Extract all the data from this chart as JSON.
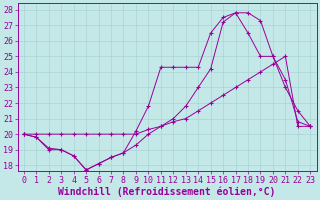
{
  "background_color": "#c4e8e8",
  "grid_color": "#a8d4d4",
  "line_color": "#990099",
  "xlabel": "Windchill (Refroidissement éolien,°C)",
  "xlabel_fontsize": 7.0,
  "tick_fontsize": 6.0,
  "ytick_labels": [
    18,
    19,
    20,
    21,
    22,
    23,
    24,
    25,
    26,
    27,
    28
  ],
  "xtick_labels": [
    0,
    1,
    2,
    3,
    4,
    5,
    6,
    7,
    8,
    9,
    10,
    11,
    12,
    13,
    14,
    15,
    16,
    17,
    18,
    19,
    20,
    21,
    22,
    23
  ],
  "ylim": [
    17.6,
    28.4
  ],
  "xlim": [
    -0.5,
    23.5
  ],
  "line1_x": [
    0,
    1,
    2,
    3,
    4,
    5,
    6,
    7,
    8,
    9,
    10,
    11,
    12,
    13,
    14,
    15,
    16,
    17,
    18,
    19,
    20,
    21,
    22,
    23
  ],
  "line1_y": [
    20.0,
    19.8,
    19.0,
    19.0,
    18.6,
    17.7,
    18.1,
    18.5,
    18.8,
    19.3,
    20.0,
    20.5,
    21.0,
    21.8,
    23.0,
    24.2,
    27.2,
    27.8,
    27.8,
    27.3,
    25.0,
    23.0,
    21.5,
    20.5
  ],
  "line2_x": [
    0,
    1,
    2,
    3,
    4,
    5,
    6,
    7,
    8,
    9,
    10,
    11,
    12,
    13,
    14,
    15,
    16,
    17,
    18,
    19,
    20,
    21,
    22,
    23
  ],
  "line2_y": [
    20.0,
    20.0,
    20.0,
    20.0,
    20.0,
    20.0,
    20.0,
    20.0,
    20.0,
    20.0,
    20.3,
    20.5,
    20.8,
    21.0,
    21.5,
    22.0,
    22.5,
    23.0,
    23.5,
    24.0,
    24.5,
    25.0,
    20.5,
    20.5
  ],
  "line3_x": [
    0,
    1,
    2,
    3,
    4,
    5,
    6,
    7,
    8,
    9,
    10,
    11,
    12,
    13,
    14,
    15,
    16,
    17,
    18,
    19,
    20,
    21,
    22,
    23
  ],
  "line3_y": [
    20.0,
    19.8,
    19.1,
    19.0,
    18.6,
    17.7,
    18.1,
    18.5,
    18.8,
    20.2,
    21.8,
    24.3,
    24.3,
    24.3,
    24.3,
    26.5,
    27.5,
    27.8,
    26.5,
    25.0,
    25.0,
    23.5,
    20.8,
    20.5
  ]
}
